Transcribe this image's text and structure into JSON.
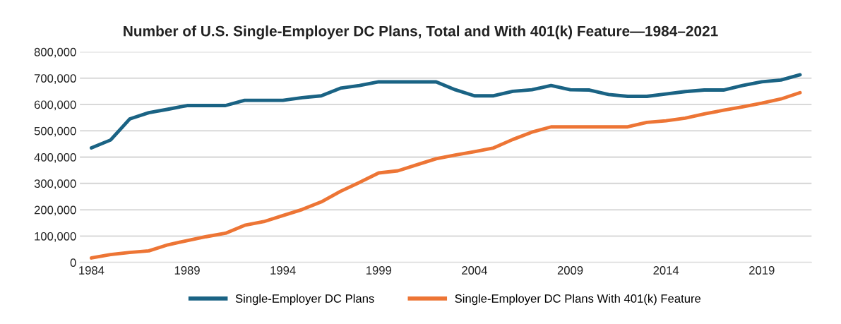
{
  "chart_data": {
    "type": "line",
    "title": "Number of U.S. Single-Employer DC Plans, Total and With 401(k) Feature—1984–2021",
    "categories": [
      "1984",
      null,
      null,
      null,
      null,
      "1989",
      null,
      null,
      null,
      null,
      "1994",
      null,
      null,
      null,
      null,
      "1999",
      null,
      null,
      null,
      null,
      "2004",
      null,
      null,
      null,
      null,
      "2009",
      null,
      null,
      null,
      null,
      "2014",
      null,
      null,
      null,
      null,
      "2019",
      null,
      null
    ],
    "series": [
      {
        "name": "Single-Employer DC Plans",
        "color": "#1a6384",
        "values": [
          435000,
          465000,
          545000,
          569000,
          582000,
          596000,
          596000,
          596000,
          616000,
          616000,
          616000,
          626000,
          633000,
          662000,
          672000,
          686000,
          686000,
          686000,
          686000,
          656000,
          633000,
          633000,
          650000,
          656000,
          672000,
          656000,
          655000,
          638000,
          631000,
          631000,
          640000,
          649000,
          655000,
          655000,
          672000,
          686000,
          693000,
          713000
        ]
      },
      {
        "name": "Single-Employer DC Plans With 401(k) Feature",
        "color": "#ed7535",
        "values": [
          17000,
          30000,
          38000,
          44000,
          67000,
          83000,
          98000,
          111000,
          141000,
          155000,
          178000,
          201000,
          230000,
          270000,
          304000,
          340000,
          348000,
          371000,
          394000,
          408000,
          421000,
          435000,
          467000,
          495000,
          515000,
          515000,
          515000,
          515000,
          515000,
          532000,
          538000,
          548000,
          564000,
          578000,
          591000,
          605000,
          621000,
          645000
        ]
      }
    ],
    "ylim": [
      0,
      800000
    ],
    "yticks": [
      {
        "value": 0,
        "label": "0"
      },
      {
        "value": 100000,
        "label": "100,000"
      },
      {
        "value": 200000,
        "label": "200,000"
      },
      {
        "value": 300000,
        "label": "300,000"
      },
      {
        "value": 400000,
        "label": "400,000"
      },
      {
        "value": 500000,
        "label": "500,000"
      },
      {
        "value": 600000,
        "label": "600,000"
      },
      {
        "value": 700000,
        "label": "700,000"
      },
      {
        "value": 800000,
        "label": "800,000"
      }
    ],
    "grid": "y",
    "legend": "bottom",
    "line_style": "solid",
    "marker": "none"
  }
}
